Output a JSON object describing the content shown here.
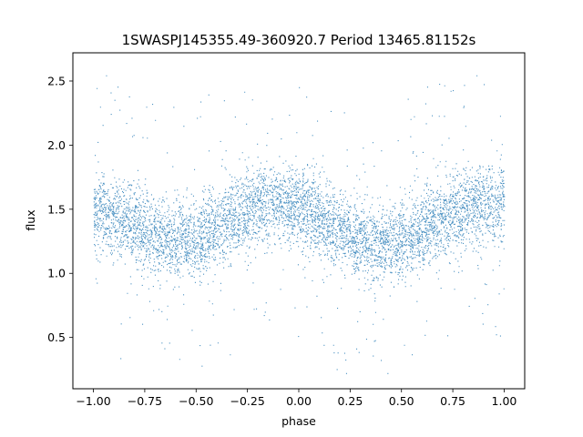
{
  "chart_data": {
    "type": "scatter",
    "title": "1SWASPJ145355.49-360920.7 Period 13465.81152s",
    "xlabel": "phase",
    "ylabel": "flux",
    "xlim": [
      -1.1,
      1.1
    ],
    "ylim": [
      0.1,
      2.72
    ],
    "xticks": [
      -1.0,
      -0.75,
      -0.5,
      -0.25,
      0.0,
      0.25,
      0.5,
      0.75,
      1.0
    ],
    "xtick_labels": [
      "−1.00",
      "−0.75",
      "−0.50",
      "−0.25",
      "0.00",
      "0.25",
      "0.50",
      "0.75",
      "1.00"
    ],
    "yticks": [
      0.5,
      1.0,
      1.5,
      2.0,
      2.5
    ],
    "ytick_labels": [
      "0.5",
      "1.0",
      "1.5",
      "2.0",
      "2.5"
    ],
    "grid": false,
    "legend": "none",
    "point_color": "#1f77b4",
    "series": [
      {
        "x_range": [
          -1.0,
          1.0
        ],
        "mean_curve": {
          "x": [
            -1.0,
            -0.85,
            -0.7,
            -0.6,
            -0.55,
            -0.45,
            -0.3,
            -0.2,
            -0.1,
            0.0,
            0.1,
            0.2,
            0.3,
            0.4,
            0.45,
            0.55,
            0.7,
            0.8,
            0.9,
            1.0
          ],
          "y": [
            1.5,
            1.42,
            1.3,
            1.25,
            1.24,
            1.3,
            1.45,
            1.53,
            1.55,
            1.52,
            1.43,
            1.33,
            1.27,
            1.24,
            1.24,
            1.3,
            1.43,
            1.5,
            1.54,
            1.55
          ]
        },
        "scatter_sigma": 0.15
      }
    ]
  }
}
